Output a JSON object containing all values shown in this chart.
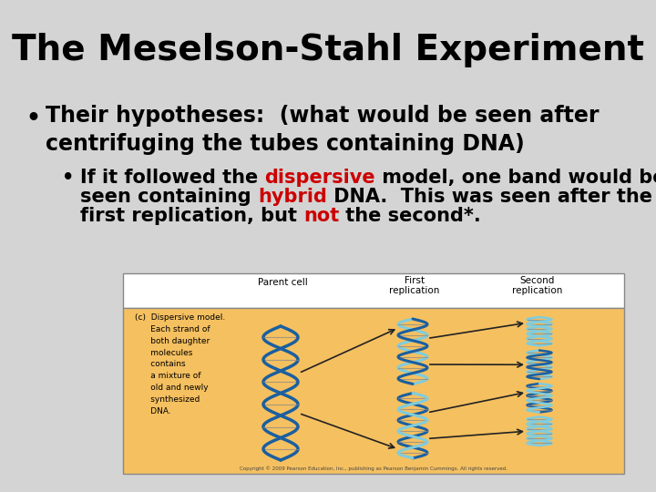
{
  "title": "The Meselson-Stahl Experiment",
  "bg_color": "#d4d4d4",
  "title_color": "#000000",
  "title_fontsize": 28,
  "bullet1": "Their hypotheses:  (what would be seen after\ncentrifuging the tubes containing DNA)",
  "bullet1_fontsize": 17,
  "bullet2_fontsize": 15,
  "bullet2_parts": [
    {
      "text": "If it followed the ",
      "color": "#000000"
    },
    {
      "text": "dispersive",
      "color": "#cc0000"
    },
    {
      "text": " model, one band would be\nseen containing ",
      "color": "#000000"
    },
    {
      "text": "hybrid",
      "color": "#cc0000"
    },
    {
      "text": " DNA.  This was seen after the\nfirst replication, but ",
      "color": "#000000"
    },
    {
      "text": "not",
      "color": "#cc0000"
    },
    {
      "text": " the second*.",
      "color": "#000000"
    }
  ],
  "img_bg_color": "#f5c060",
  "img_border_color": "#888888",
  "helix_dark": "#1a5fa0",
  "helix_light": "#80ccdd",
  "label_color": "#000000",
  "desc_text": "(c)  Dispersive model.\n      Each strand of\n      both daughter\n      molecules\n      contains\n      a mixture of\n      old and newly\n      synthesized\n      DNA.",
  "copyright_text": "Copyright © 2009 Pearson Education, Inc., publishing as Pearson Benjamin Cummings. All rights reserved."
}
